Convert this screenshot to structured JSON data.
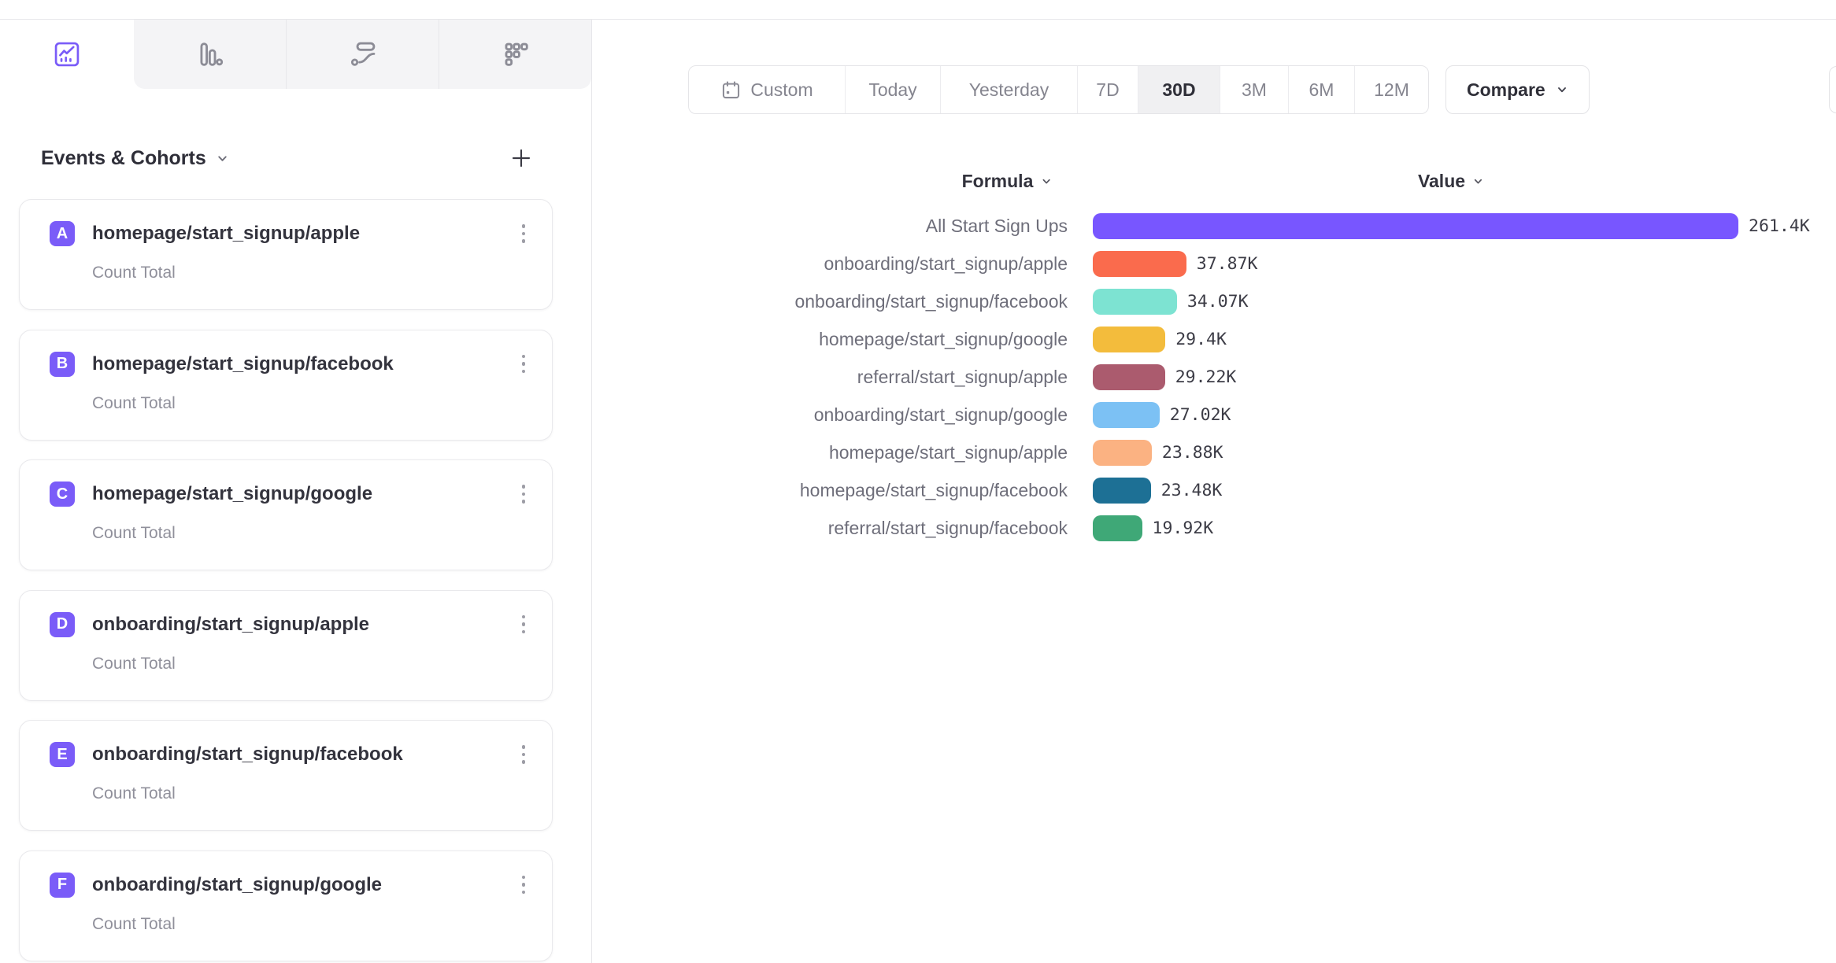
{
  "tabs": [
    {
      "name": "insights",
      "active": true
    },
    {
      "name": "bar-chart",
      "active": false
    },
    {
      "name": "flows",
      "active": false
    },
    {
      "name": "retention",
      "active": false
    }
  ],
  "sidebar": {
    "title": "Events & Cohorts",
    "items": [
      {
        "letter": "A",
        "name": "homepage/start_signup/apple",
        "metric": "Count Total"
      },
      {
        "letter": "B",
        "name": "homepage/start_signup/facebook",
        "metric": "Count Total"
      },
      {
        "letter": "C",
        "name": "homepage/start_signup/google",
        "metric": "Count Total"
      },
      {
        "letter": "D",
        "name": "onboarding/start_signup/apple",
        "metric": "Count Total"
      },
      {
        "letter": "E",
        "name": "onboarding/start_signup/facebook",
        "metric": "Count Total"
      },
      {
        "letter": "F",
        "name": "onboarding/start_signup/google",
        "metric": "Count Total"
      }
    ]
  },
  "toolbar": {
    "date_ranges": [
      {
        "label": "Custom",
        "has_icon": true,
        "active": false
      },
      {
        "label": "Today",
        "has_icon": false,
        "active": false
      },
      {
        "label": "Yesterday",
        "has_icon": false,
        "active": false
      },
      {
        "label": "7D",
        "has_icon": false,
        "active": false
      },
      {
        "label": "30D",
        "has_icon": false,
        "active": true
      },
      {
        "label": "3M",
        "has_icon": false,
        "active": false
      },
      {
        "label": "6M",
        "has_icon": false,
        "active": false
      },
      {
        "label": "12M",
        "has_icon": false,
        "active": false
      }
    ],
    "selected_range": "30D",
    "compare_label": "Compare"
  },
  "chart_data": {
    "type": "bar",
    "orientation": "horizontal",
    "column_headers": {
      "formula": "Formula",
      "value": "Value"
    },
    "categories": [
      "All Start Sign Ups",
      "onboarding/start_signup/apple",
      "onboarding/start_signup/facebook",
      "homepage/start_signup/google",
      "referral/start_signup/apple",
      "onboarding/start_signup/google",
      "homepage/start_signup/apple",
      "homepage/start_signup/facebook",
      "referral/start_signup/facebook"
    ],
    "values": [
      261400,
      37870,
      34070,
      29400,
      29220,
      27020,
      23880,
      23480,
      19920
    ],
    "value_labels": [
      "261.4K",
      "37.87K",
      "34.07K",
      "29.4K",
      "29.22K",
      "27.02K",
      "23.88K",
      "23.48K",
      "19.92K"
    ],
    "colors": [
      "#7856FF",
      "#FA6B4D",
      "#7DE3D2",
      "#F3BC3C",
      "#AB5B6E",
      "#7CC1F4",
      "#FBB282",
      "#1D7095",
      "#3FA877"
    ],
    "xlim": [
      0,
      261400
    ],
    "grid": false,
    "legend": "none"
  },
  "ui_colors": {
    "accent_purple": "#7A5CF8",
    "border": "#e7e7ea",
    "tab_bg": "#f4f4f6",
    "text_dark": "#2f2f38",
    "text_gray": "#6e6e7a"
  }
}
